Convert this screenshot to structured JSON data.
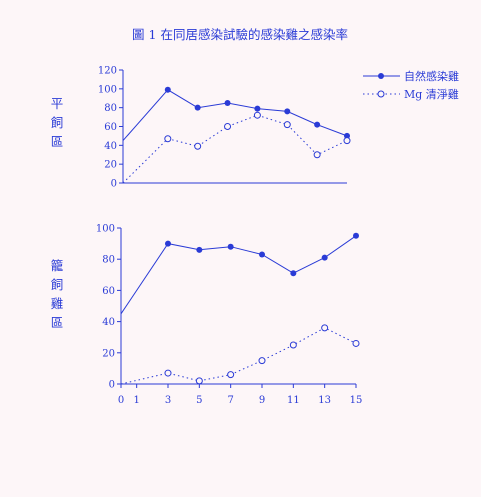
{
  "colors": {
    "ink": "#2a3bd6",
    "background": "#fdf6f8"
  },
  "title": "圖 1  在同居感染試驗的感染雞之感染率",
  "legend": {
    "placement": "top-right",
    "natural": "自然感染雞",
    "mg": "Mg 清淨雞"
  },
  "chart_data": [
    {
      "type": "line",
      "panel_label": [
        "平",
        "飼",
        "區"
      ],
      "x": [
        0,
        3,
        5,
        7,
        9,
        11,
        13,
        15
      ],
      "ylim": [
        0,
        120
      ],
      "yticks": [
        "0",
        "20",
        "40",
        "60",
        "80",
        "100",
        "120"
      ],
      "series": [
        {
          "name": "自然感染雞",
          "marker": "filled",
          "line": "solid",
          "values": [
            45,
            99,
            80,
            85,
            79,
            76,
            62,
            50
          ]
        },
        {
          "name": "Mg 清淨雞",
          "marker": "open",
          "line": "dotted",
          "values": [
            0,
            47,
            39,
            60,
            72,
            62,
            30,
            45
          ]
        }
      ],
      "grid": false
    },
    {
      "type": "line",
      "panel_label": [
        "籠",
        "飼",
        "雞",
        "區"
      ],
      "x": [
        0,
        3,
        5,
        7,
        9,
        11,
        13,
        15
      ],
      "ylim": [
        0,
        100
      ],
      "yticks": [
        "0",
        "20",
        "40",
        "60",
        "80",
        "100"
      ],
      "xticks": [
        "0",
        "1",
        "3",
        "5",
        "7",
        "9",
        "11",
        "13",
        "15"
      ],
      "series": [
        {
          "name": "自然感染雞",
          "marker": "filled",
          "line": "solid",
          "values": [
            45,
            90,
            86,
            88,
            83,
            71,
            81,
            95
          ]
        },
        {
          "name": "Mg 清淨雞",
          "marker": "open",
          "line": "dotted",
          "values": [
            0,
            7,
            2,
            6,
            15,
            25,
            36,
            26
          ]
        }
      ],
      "grid": false
    }
  ]
}
